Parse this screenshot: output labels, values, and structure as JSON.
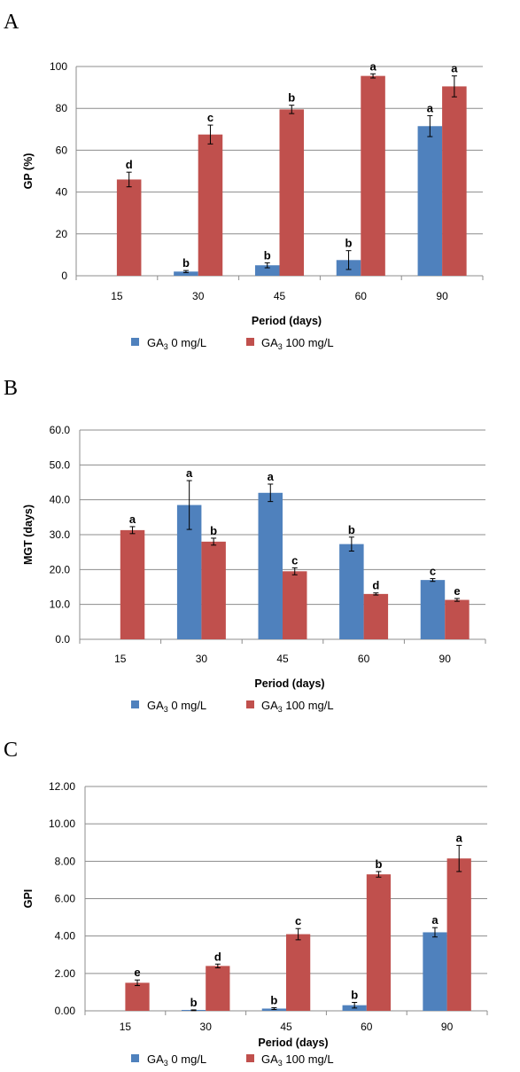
{
  "colors": {
    "series0": "#4f81bd",
    "series1": "#c0504d",
    "grid": "#8c8c8c",
    "axis": "#8c8c8c",
    "error": "#000000"
  },
  "chart_data": [
    {
      "panel": "A",
      "type": "bar",
      "categories": [
        "15",
        "30",
        "45",
        "60",
        "90"
      ],
      "xlabel": "Period (days)",
      "ylabel": "GP (%)",
      "ylim": [
        0,
        100
      ],
      "yticks": [
        0,
        20,
        40,
        60,
        80,
        100
      ],
      "ytick_labels": [
        "0",
        "20",
        "40",
        "60",
        "80",
        "100"
      ],
      "grid": true,
      "legend_position": "bottom",
      "series": [
        {
          "name_prefix": "GA",
          "name_sub": "3",
          "name_suffix": " 0 mg/L",
          "values": [
            null,
            2,
            5,
            7.5,
            71.5
          ],
          "errors": [
            null,
            0.5,
            1.2,
            4.5,
            5
          ],
          "labels": [
            "",
            "b",
            "b",
            "b",
            "a"
          ]
        },
        {
          "name_prefix": "GA",
          "name_sub": "3",
          "name_suffix": " 100 mg/L",
          "values": [
            46,
            67.5,
            79.5,
            95.5,
            90.5
          ],
          "errors": [
            3.5,
            4.5,
            2,
            1,
            5
          ],
          "labels": [
            "d",
            "c",
            "b",
            "a",
            "a"
          ]
        }
      ]
    },
    {
      "panel": "B",
      "type": "bar",
      "categories": [
        "15",
        "30",
        "45",
        "60",
        "90"
      ],
      "xlabel": "Period (days)",
      "ylabel": "MGT (days)",
      "ylim": [
        0,
        60
      ],
      "yticks": [
        0,
        10,
        20,
        30,
        40,
        50,
        60
      ],
      "ytick_labels": [
        "0.0",
        "10.0",
        "20.0",
        "30.0",
        "40.0",
        "50.0",
        "60.0"
      ],
      "grid": true,
      "legend_position": "bottom",
      "series": [
        {
          "name_prefix": "GA",
          "name_sub": "3",
          "name_suffix": " 0 mg/L",
          "values": [
            null,
            38.5,
            42,
            27.3,
            17
          ],
          "errors": [
            null,
            7,
            2.5,
            2,
            0.4
          ],
          "labels": [
            "",
            "a",
            "a",
            "b",
            "c"
          ]
        },
        {
          "name_prefix": "GA",
          "name_sub": "3",
          "name_suffix": " 100 mg/L",
          "values": [
            31.3,
            28,
            19.5,
            13,
            11.3
          ],
          "errors": [
            1,
            1,
            1,
            0.3,
            0.4
          ],
          "labels": [
            "a",
            "b",
            "c",
            "d",
            "e"
          ]
        }
      ]
    },
    {
      "panel": "C",
      "type": "bar",
      "categories": [
        "15",
        "30",
        "45",
        "60",
        "90"
      ],
      "xlabel": "Period (days)",
      "ylabel": "GPI",
      "ylim": [
        0,
        12
      ],
      "yticks": [
        0,
        2,
        4,
        6,
        8,
        10,
        12
      ],
      "ytick_labels": [
        "0.00",
        "2.00",
        "4.00",
        "6.00",
        "8.00",
        "10.00",
        "12.00"
      ],
      "grid": true,
      "legend_position": "bottom",
      "series": [
        {
          "name_prefix": "GA",
          "name_sub": "3",
          "name_suffix": " 0 mg/L",
          "values": [
            null,
            0.03,
            0.12,
            0.3,
            4.2
          ],
          "errors": [
            null,
            0.02,
            0.05,
            0.15,
            0.25
          ],
          "labels": [
            "",
            "b",
            "b",
            "b",
            "a"
          ]
        },
        {
          "name_prefix": "GA",
          "name_sub": "3",
          "name_suffix": " 100 mg/L",
          "values": [
            1.5,
            2.4,
            4.1,
            7.3,
            8.15
          ],
          "errors": [
            0.15,
            0.1,
            0.3,
            0.15,
            0.7
          ],
          "labels": [
            "e",
            "d",
            "c",
            "b",
            "a"
          ]
        }
      ]
    }
  ]
}
